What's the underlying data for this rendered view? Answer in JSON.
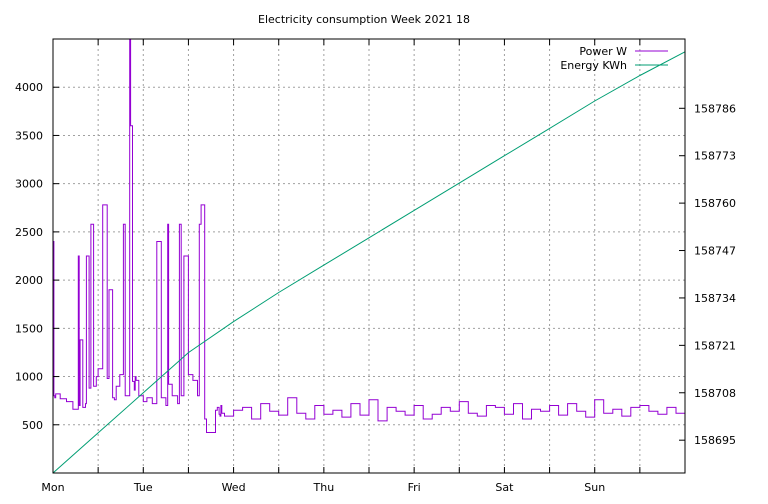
{
  "chart_data": {
    "type": "line",
    "title": "Electricity consumption Week 2021 18",
    "xlabel": "",
    "ylabel": "",
    "x_ticks": [
      "Mon",
      "Tue",
      "Wed",
      "Thu",
      "Fri",
      "Sat",
      "Sun"
    ],
    "x_range_days": [
      0,
      7
    ],
    "y_left": {
      "ticks": [
        500,
        1000,
        1500,
        2000,
        2500,
        3000,
        3500,
        4000
      ],
      "range": [
        0,
        4500
      ]
    },
    "y_right": {
      "ticks": [
        158695,
        158708,
        158721,
        158734,
        158747,
        158760,
        158773,
        158786
      ],
      "range": [
        158686,
        158805
      ]
    },
    "grid": true,
    "legend_position": "top-right",
    "series": [
      {
        "name": "Power W",
        "axis": "left",
        "color": "#9400d3",
        "x": [
          0,
          0.01,
          0.02,
          0.03,
          0.08,
          0.15,
          0.22,
          0.28,
          0.29,
          0.3,
          0.33,
          0.36,
          0.37,
          0.4,
          0.42,
          0.45,
          0.48,
          0.5,
          0.55,
          0.6,
          0.62,
          0.66,
          0.68,
          0.7,
          0.74,
          0.78,
          0.8,
          0.85,
          0.86,
          0.88,
          0.9,
          0.91,
          0.92,
          0.95,
          1.0,
          1.04,
          1.1,
          1.15,
          1.2,
          1.25,
          1.27,
          1.28,
          1.32,
          1.38,
          1.4,
          1.42,
          1.45,
          1.5,
          1.55,
          1.6,
          1.62,
          1.64,
          1.68,
          1.7,
          1.8,
          1.82,
          1.84,
          1.85,
          1.86,
          1.87,
          1.9,
          2.0,
          2.1,
          2.2,
          2.3,
          2.4,
          2.5,
          2.6,
          2.7,
          2.8,
          2.9,
          3.0,
          3.1,
          3.2,
          3.3,
          3.4,
          3.5,
          3.6,
          3.7,
          3.8,
          3.9,
          4.0,
          4.1,
          4.2,
          4.3,
          4.4,
          4.5,
          4.6,
          4.7,
          4.8,
          4.9,
          5.0,
          5.1,
          5.2,
          5.3,
          5.4,
          5.5,
          5.6,
          5.7,
          5.8,
          5.9,
          6.0,
          6.1,
          6.2,
          6.3,
          6.4,
          6.5,
          6.6,
          6.7,
          6.8,
          6.9,
          7.0
        ],
        "values": [
          2400,
          800,
          780,
          820,
          770,
          740,
          660,
          2250,
          700,
          1380,
          680,
          720,
          2250,
          880,
          2580,
          900,
          1000,
          1080,
          2780,
          980,
          1900,
          780,
          760,
          900,
          1020,
          2580,
          800,
          4500,
          3600,
          950,
          860,
          1000,
          960,
          800,
          740,
          780,
          720,
          2400,
          780,
          700,
          2580,
          920,
          800,
          720,
          2580,
          800,
          2250,
          1020,
          960,
          800,
          2580,
          2780,
          560,
          420,
          650,
          680,
          610,
          590,
          700,
          620,
          590,
          650,
          680,
          560,
          720,
          640,
          600,
          780,
          620,
          560,
          700,
          610,
          650,
          580,
          720,
          600,
          760,
          540,
          680,
          640,
          600,
          700,
          560,
          610,
          680,
          640,
          740,
          620,
          590,
          700,
          680,
          610,
          720,
          560,
          660,
          640,
          700,
          600,
          720,
          640,
          580,
          760,
          620,
          660,
          590,
          680,
          700,
          640,
          610,
          680,
          620,
          690
        ]
      },
      {
        "name": "Energy KWh",
        "axis": "right",
        "color": "#009e73",
        "x": [
          0,
          0.5,
          1.0,
          1.5,
          2.0,
          2.5,
          3.0,
          3.5,
          4.0,
          4.5,
          5.0,
          5.5,
          6.0,
          6.5,
          7.0
        ],
        "values": [
          158686,
          158697,
          158708,
          158719,
          158727.5,
          158735.5,
          158743,
          158750.5,
          158758,
          158765.5,
          158773,
          158780.5,
          158788,
          158795,
          158801.5
        ]
      }
    ]
  }
}
